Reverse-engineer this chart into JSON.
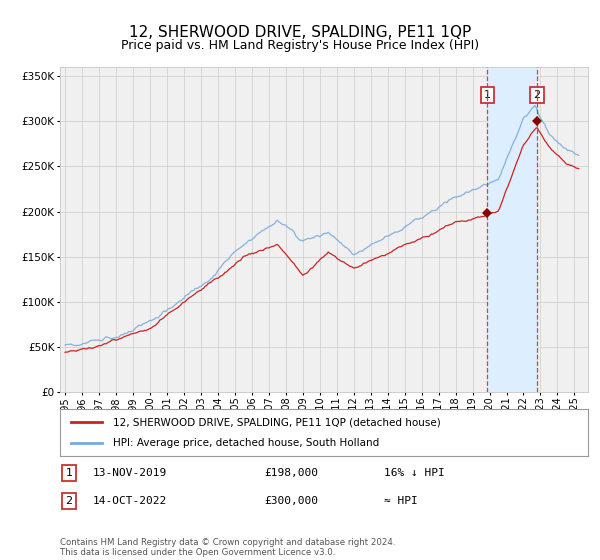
{
  "title": "12, SHERWOOD DRIVE, SPALDING, PE11 1QP",
  "subtitle": "Price paid vs. HM Land Registry's House Price Index (HPI)",
  "title_fontsize": 11,
  "subtitle_fontsize": 9,
  "ylim": [
    0,
    360000
  ],
  "yticks": [
    0,
    50000,
    100000,
    150000,
    200000,
    250000,
    300000,
    350000
  ],
  "ytick_labels": [
    "£0",
    "£50K",
    "£100K",
    "£150K",
    "£200K",
    "£250K",
    "£300K",
    "£350K"
  ],
  "xlim_start": 1994.7,
  "xlim_end": 2025.8,
  "xtick_years": [
    1995,
    1996,
    1997,
    1998,
    1999,
    2000,
    2001,
    2002,
    2003,
    2004,
    2005,
    2006,
    2007,
    2008,
    2009,
    2010,
    2011,
    2012,
    2013,
    2014,
    2015,
    2016,
    2017,
    2018,
    2019,
    2020,
    2021,
    2022,
    2023,
    2024,
    2025
  ],
  "sale1_x": 2019.87,
  "sale1_y": 198000,
  "sale1_label": "1",
  "sale2_x": 2022.79,
  "sale2_y": 300000,
  "sale2_label": "2",
  "hpi_color": "#7aaadd",
  "price_color": "#cc2222",
  "sale_marker_color": "#880000",
  "highlight_color": "#ddeeff",
  "dashed_color": "#cc3333",
  "grid_color": "#cccccc",
  "bg_color": "#f0f0f0",
  "legend_line1": "12, SHERWOOD DRIVE, SPALDING, PE11 1QP (detached house)",
  "legend_line2": "HPI: Average price, detached house, South Holland",
  "note1_num": "1",
  "note1_date": "13-NOV-2019",
  "note1_price": "£198,000",
  "note1_hpi": "16% ↓ HPI",
  "note2_num": "2",
  "note2_date": "14-OCT-2022",
  "note2_price": "£300,000",
  "note2_hpi": "≈ HPI",
  "footer": "Contains HM Land Registry data © Crown copyright and database right 2024.\nThis data is licensed under the Open Government Licence v3.0."
}
